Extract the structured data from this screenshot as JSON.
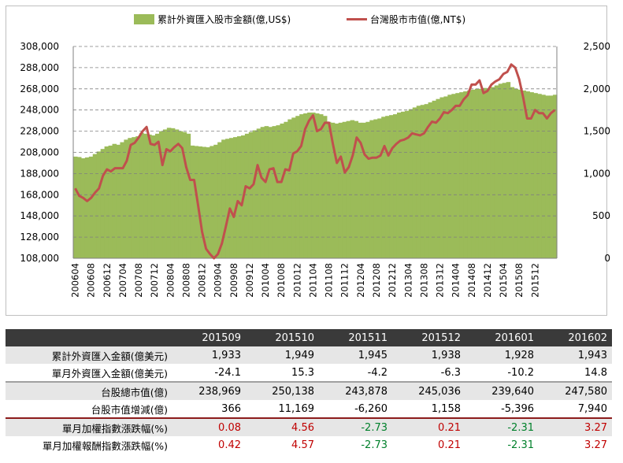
{
  "legend": {
    "bar_label": "累計外資匯入股市金額(億,US$)",
    "line_label": "台灣股市市值(億,NT$)"
  },
  "colors": {
    "bar": "#9bbb59",
    "line": "#c0504d",
    "header_bg": "#3a3a3a",
    "positive": "#c00000",
    "negative": "#00802b"
  },
  "chart_data": {
    "type": "bar+line",
    "x_tick_labels": [
      "200604",
      "200608",
      "200612",
      "200704",
      "200708",
      "200712",
      "200804",
      "200808",
      "200812",
      "200904",
      "200908",
      "200912",
      "201004",
      "201008",
      "201012",
      "201104",
      "201108",
      "201112",
      "201204",
      "201208",
      "201212",
      "201304",
      "201308",
      "201312",
      "201404",
      "201408",
      "201412",
      "201504",
      "201508",
      "201512"
    ],
    "left_axis": {
      "ylim": [
        108000,
        308000
      ],
      "ticks": [
        "108,000",
        "128,000",
        "148,000",
        "168,000",
        "188,000",
        "208,000",
        "228,000",
        "248,000",
        "268,000",
        "288,000",
        "308,000"
      ]
    },
    "right_axis": {
      "ylim": [
        0,
        2500
      ],
      "ticks": [
        "0",
        "500",
        "1,000",
        "1,500",
        "2,000",
        "2,500"
      ]
    },
    "bar_series": {
      "name": "累計外資匯入股市金額(億,US$)",
      "axis": "right",
      "values": [
        1200,
        1195,
        1180,
        1190,
        1200,
        1230,
        1260,
        1290,
        1320,
        1330,
        1350,
        1340,
        1370,
        1400,
        1420,
        1430,
        1440,
        1480,
        1470,
        1460,
        1450,
        1470,
        1500,
        1520,
        1540,
        1535,
        1520,
        1500,
        1490,
        1470,
        1330,
        1325,
        1320,
        1315,
        1310,
        1325,
        1340,
        1370,
        1400,
        1410,
        1420,
        1430,
        1440,
        1450,
        1470,
        1490,
        1510,
        1530,
        1550,
        1560,
        1550,
        1560,
        1570,
        1590,
        1610,
        1640,
        1660,
        1680,
        1700,
        1710,
        1720,
        1720,
        1710,
        1700,
        1680,
        1610,
        1600,
        1590,
        1600,
        1610,
        1620,
        1630,
        1620,
        1600,
        1600,
        1610,
        1630,
        1640,
        1650,
        1670,
        1680,
        1690,
        1700,
        1720,
        1730,
        1740,
        1760,
        1780,
        1800,
        1810,
        1820,
        1840,
        1860,
        1880,
        1900,
        1910,
        1930,
        1940,
        1950,
        1960,
        1970,
        1980,
        1990,
        2000,
        2000,
        2010,
        2000,
        2020,
        2040,
        2060,
        2070,
        2080,
        2020,
        2000,
        1990,
        1980,
        1970,
        1960,
        1950,
        1940,
        1930,
        1920,
        1920,
        1930
      ]
    },
    "line_series": {
      "name": "台灣股市市值(億,NT$)",
      "axis": "left",
      "values": [
        174000,
        167000,
        165000,
        162000,
        165000,
        170000,
        174000,
        186000,
        192000,
        190000,
        193000,
        193000,
        193000,
        200000,
        215000,
        217000,
        222000,
        228000,
        232000,
        216000,
        215000,
        218000,
        196000,
        211000,
        209000,
        213000,
        216000,
        212000,
        194000,
        182000,
        182000,
        158000,
        133000,
        117000,
        112000,
        108000,
        112000,
        122000,
        138000,
        155000,
        147000,
        162000,
        158000,
        176000,
        174000,
        178000,
        196000,
        184000,
        180000,
        192000,
        193000,
        180000,
        180000,
        192000,
        191000,
        207000,
        209000,
        214000,
        230000,
        238000,
        243000,
        228000,
        230000,
        236000,
        236000,
        216000,
        198000,
        204000,
        189000,
        194000,
        205000,
        222000,
        217000,
        206000,
        202000,
        203000,
        203000,
        205000,
        214000,
        205000,
        212000,
        216000,
        219000,
        220000,
        222000,
        226000,
        225000,
        224000,
        226000,
        232000,
        237000,
        236000,
        240000,
        246000,
        245000,
        248000,
        252000,
        252000,
        258000,
        262000,
        272000,
        272000,
        276000,
        264000,
        266000,
        272000,
        275000,
        277000,
        282000,
        284000,
        291000,
        288000,
        277000,
        260000,
        240000,
        240000,
        248000,
        245000,
        245000,
        240000,
        245000,
        248000
      ]
    }
  },
  "table": {
    "headers": [
      "",
      "201509",
      "201510",
      "201511",
      "201512",
      "201601",
      "201602"
    ],
    "rows": [
      {
        "label": "累計外資匯入金額(億美元)",
        "values": [
          "1,933",
          "1,949",
          "1,945",
          "1,938",
          "1,928",
          "1,943"
        ]
      },
      {
        "label": "單月外資匯入金額(億美元)",
        "values": [
          "-24.1",
          "15.3",
          "-4.2",
          "-6.3",
          "-10.2",
          "14.8"
        ]
      },
      {
        "label": "台股總市值(億)",
        "values": [
          "238,969",
          "250,138",
          "243,878",
          "245,036",
          "239,640",
          "247,580"
        ]
      },
      {
        "label": "台股市值增減(億)",
        "values": [
          "366",
          "11,169",
          "-6,260",
          "1,158",
          "-5,396",
          "7,940"
        ]
      },
      {
        "label": "單月加權指數漲跌幅(%)",
        "values": [
          "0.08",
          "4.56",
          "-2.73",
          "0.21",
          "-2.31",
          "3.27"
        ]
      },
      {
        "label": "單月加權報酬指數漲跌幅(%)",
        "values": [
          "0.42",
          "4.57",
          "-2.73",
          "0.21",
          "-2.31",
          "3.27"
        ]
      }
    ]
  }
}
